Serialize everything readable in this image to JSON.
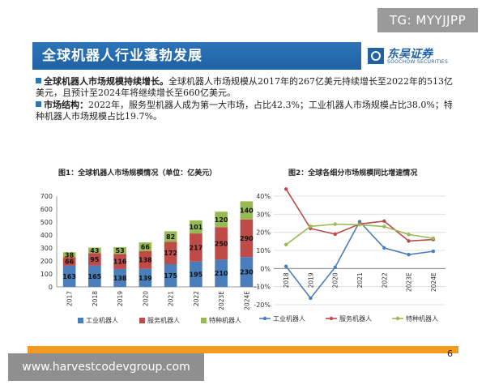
{
  "watermark_top": "TG: MYYJJPP",
  "watermark_bottom": "www.harvestcodevgroup.com",
  "header": {
    "title": "全球机器人行业蓬勃发展",
    "logo_cn": "东吴证券",
    "logo_en": "SOOCHOW SECURITIES"
  },
  "bullets": [
    {
      "key": "全球机器人市场规模持续增长。",
      "text": "全球机器人市场规模从2017年的267亿美元持续增长至2022年的513亿美元，且预计至2024年将继续增长至660亿美元。"
    },
    {
      "key": "市场结构：",
      "text": "2022年，服务型机器人成为第一大市场，占比42.3%；工业机器人市场规模占比38.0%；特种机器人市场规模占比19.7%。"
    }
  ],
  "page_number": "6",
  "colors": {
    "industrial": "#4a7ebb",
    "service": "#be4b48",
    "special": "#98b954",
    "band": "#1f62a5",
    "accent": "#f39a1f"
  },
  "chart_data": [
    {
      "type": "bar",
      "stacked": true,
      "title": "图1：全球机器人市场规模情况（单位：亿美元）",
      "categories": [
        "2017",
        "2018",
        "2019",
        "2020",
        "2021",
        "2022",
        "2023E",
        "2024E"
      ],
      "series": [
        {
          "name": "工业机器人",
          "values": [
            163,
            165,
            138,
            139,
            175,
            195,
            210,
            230
          ]
        },
        {
          "name": "服务机器人",
          "values": [
            66,
            95,
            116,
            138,
            172,
            217,
            250,
            290
          ]
        },
        {
          "name": "特种机器人",
          "values": [
            38,
            43,
            53,
            66,
            82,
            101,
            120,
            140
          ]
        }
      ],
      "ylim": [
        0,
        700
      ],
      "yticks": [
        "0",
        "100",
        "200",
        "300",
        "400",
        "500",
        "600",
        "700"
      ],
      "legend": "bottom",
      "grid": false
    },
    {
      "type": "line",
      "title": "图2：全球各细分市场规模同比增速情况",
      "categories": [
        "2018",
        "2019",
        "2020",
        "2021",
        "2022",
        "2023E",
        "2024E"
      ],
      "series": [
        {
          "name": "工业机器人",
          "values": [
            1.2,
            -16.4,
            0.7,
            25.9,
            11.4,
            7.7,
            9.5
          ]
        },
        {
          "name": "服务机器人",
          "values": [
            43.9,
            22.1,
            19.0,
            24.6,
            26.2,
            15.2,
            16.0
          ]
        },
        {
          "name": "特种机器人",
          "values": [
            13.2,
            23.3,
            24.5,
            24.2,
            23.2,
            18.8,
            16.7
          ]
        }
      ],
      "ylim": [
        -20,
        40
      ],
      "yticks": [
        "-20%",
        "-10%",
        "0%",
        "10%",
        "20%",
        "30%",
        "40%"
      ],
      "legend": "bottom",
      "grid": true
    }
  ]
}
